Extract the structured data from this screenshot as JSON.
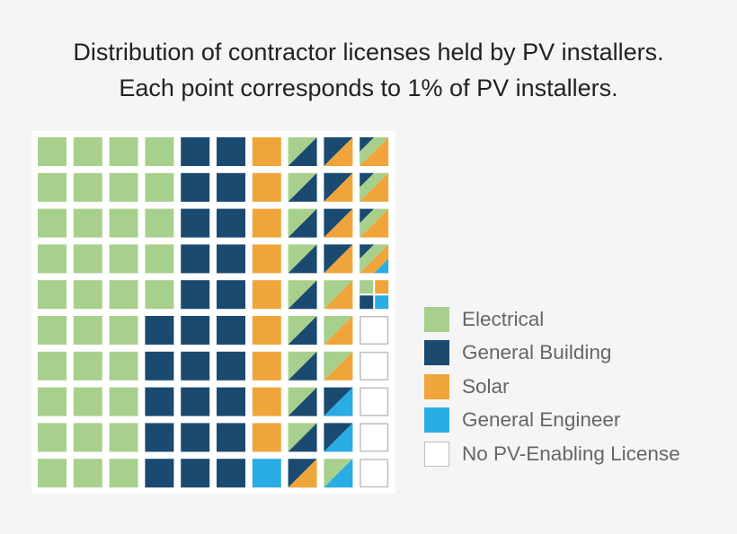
{
  "title_lines": [
    "Distribution of contractor licenses held by PV installers.",
    "Each point corresponds to 1% of PV installers."
  ],
  "colors": {
    "E": "#a8d08d",
    "G": "#1b4a70",
    "S": "#f0a53a",
    "N": "#2aace4",
    "X": "#ffffff",
    "X_border": "#bfbfbf",
    "panel": "#ffffff",
    "background": "#f5f5f5"
  },
  "chart_data": {
    "type": "waffle",
    "unit": "1% of PV installers per cell",
    "columns": 10,
    "rows": 10,
    "legend": [
      {
        "key": "E",
        "label": "Electrical"
      },
      {
        "key": "G",
        "label": "General Building"
      },
      {
        "key": "S",
        "label": "Solar"
      },
      {
        "key": "N",
        "label": "General Engineer"
      },
      {
        "key": "X",
        "label": "No PV-Enabling License"
      }
    ],
    "grid": [
      [
        "E",
        "E",
        "E",
        "E",
        "G",
        "G",
        "S",
        "EG",
        "GS",
        "GES"
      ],
      [
        "E",
        "E",
        "E",
        "E",
        "G",
        "G",
        "S",
        "EG",
        "GS",
        "GES"
      ],
      [
        "E",
        "E",
        "E",
        "E",
        "G",
        "G",
        "S",
        "EG",
        "GS",
        "GES"
      ],
      [
        "E",
        "E",
        "E",
        "E",
        "G",
        "G",
        "S",
        "EG",
        "GS",
        "GESN"
      ],
      [
        "E",
        "E",
        "E",
        "E",
        "G",
        "G",
        "S",
        "EG",
        "ES",
        "GESN-q"
      ],
      [
        "E",
        "E",
        "E",
        "G",
        "G",
        "G",
        "S",
        "EG",
        "ES",
        "X"
      ],
      [
        "E",
        "E",
        "E",
        "G",
        "G",
        "G",
        "S",
        "EG",
        "ES",
        "X"
      ],
      [
        "E",
        "E",
        "E",
        "G",
        "G",
        "G",
        "S",
        "EG",
        "GN",
        "X"
      ],
      [
        "E",
        "E",
        "E",
        "G",
        "G",
        "G",
        "S",
        "EG",
        "GN",
        "X"
      ],
      [
        "E",
        "E",
        "E",
        "G",
        "G",
        "G",
        "N",
        "GS",
        "EN",
        "X"
      ]
    ]
  }
}
